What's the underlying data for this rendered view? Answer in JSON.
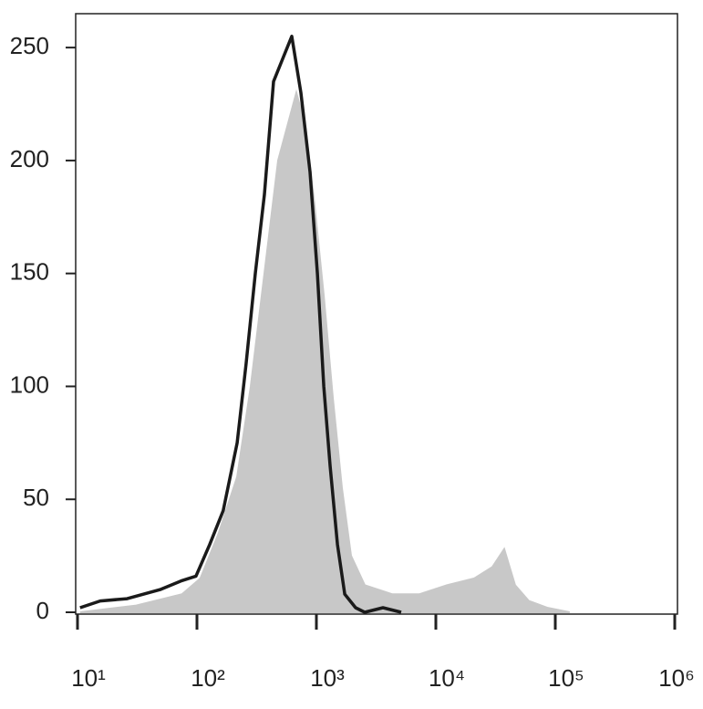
{
  "chart_data": {
    "type": "histogram-overlay",
    "xscale": "log",
    "xlim": [
      10,
      1000000
    ],
    "ylim": [
      0,
      265
    ],
    "xticks": [
      {
        "value": 10,
        "label": "10¹"
      },
      {
        "value": 100,
        "label": "10²"
      },
      {
        "value": 1000,
        "label": "10³"
      },
      {
        "value": 10000,
        "label": "10⁴"
      },
      {
        "value": 100000,
        "label": "10⁵"
      },
      {
        "value": 1000000,
        "label": "10⁶"
      }
    ],
    "yticks": [
      0,
      50,
      100,
      150,
      200,
      250
    ],
    "series": [
      {
        "style": "area",
        "color": "#c8c8c8",
        "x": [
          10.5,
          31,
          75,
          107,
          152,
          217,
          282,
          367,
          478,
          570,
          679,
          810,
          966,
          1152,
          1371,
          1636,
          1950,
          2540,
          4300,
          7300,
          12400,
          21000,
          29700,
          37400,
          46100,
          60100,
          85300,
          132000
        ],
        "values": [
          0,
          3,
          8,
          15,
          35,
          60,
          100,
          150,
          200,
          215,
          230,
          215,
          180,
          140,
          95,
          55,
          25,
          12,
          8,
          8,
          12,
          15,
          20,
          28,
          12,
          5,
          2,
          0
        ]
      },
      {
        "style": "line",
        "color": "#1a1a1a",
        "x": [
          10.5,
          15.5,
          26,
          49,
          75,
          98,
          128,
          166,
          217,
          258,
          308,
          367,
          438,
          522,
          622,
          742,
          885,
          1019,
          1152,
          1302,
          1500,
          1726,
          2130,
          2540,
          3610,
          5130
        ],
        "values": [
          2,
          5,
          6,
          10,
          14,
          16,
          30,
          45,
          75,
          110,
          150,
          185,
          235,
          245,
          255,
          230,
          195,
          150,
          100,
          65,
          30,
          8,
          2,
          0,
          2,
          0
        ]
      }
    ]
  }
}
